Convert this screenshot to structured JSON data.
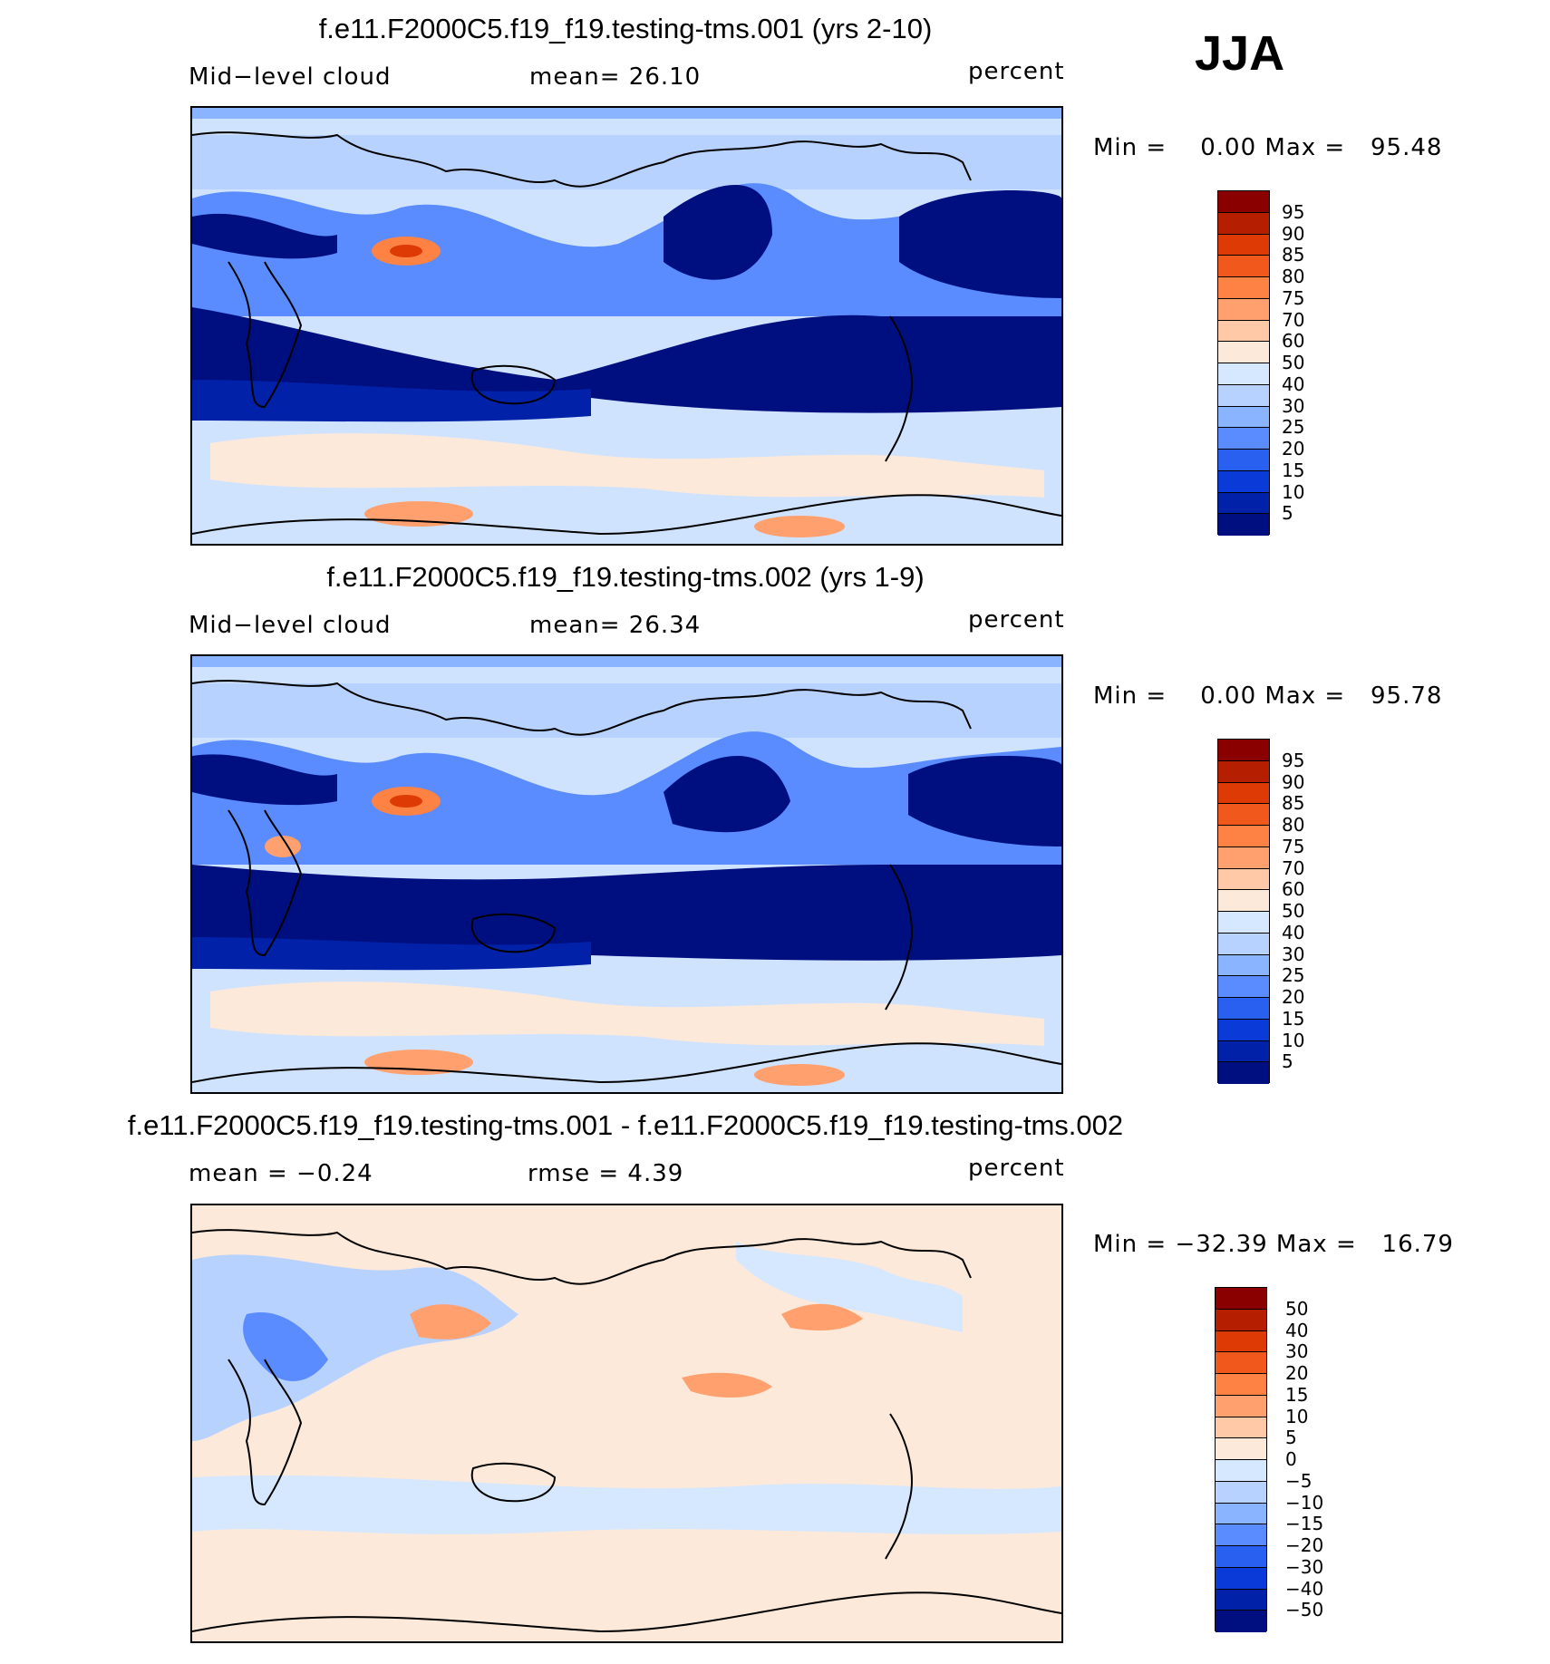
{
  "season": "JJA",
  "panels": [
    {
      "title": "f.e11.F2000C5.f19_f19.testing-tms.001 (yrs 2-10)",
      "left_label": "Mid−level cloud",
      "center_label": "mean=   26.10",
      "units": "percent",
      "minmax": "Min =    0.00 Max =   95.48",
      "kind": "cloud"
    },
    {
      "title": "f.e11.F2000C5.f19_f19.testing-tms.002 (yrs 1-9)",
      "left_label": "Mid−level cloud",
      "center_label": "mean=   26.34",
      "units": "percent",
      "minmax": "Min =    0.00 Max =   95.78",
      "kind": "cloud"
    },
    {
      "title": "f.e11.F2000C5.f19_f19.testing-tms.001 - f.e11.F2000C5.f19_f19.testing-tms.002",
      "left_label": "mean =   −0.24",
      "center_label": "rmse =    4.39",
      "units": "percent",
      "minmax": "Min = −32.39 Max =   16.79",
      "kind": "diff"
    }
  ],
  "colorbars": {
    "cloud": {
      "labels": [
        "95",
        "90",
        "85",
        "80",
        "75",
        "70",
        "60",
        "50",
        "40",
        "30",
        "25",
        "20",
        "15",
        "10",
        "5"
      ],
      "colors": [
        "#8a0000",
        "#b51f00",
        "#dd3a06",
        "#f0581c",
        "#ff8245",
        "#ffa06e",
        "#ffc9a8",
        "#fde9da",
        "#d6e8ff",
        "#b8d2ff",
        "#8ab4ff",
        "#5a8cff",
        "#2a60f0",
        "#0a3ad8",
        "#0021a8",
        "#000f80"
      ]
    },
    "diff": {
      "labels": [
        "50",
        "40",
        "30",
        "20",
        "15",
        "10",
        "5",
        "0",
        "−5",
        "−10",
        "−15",
        "−20",
        "−30",
        "−40",
        "−50"
      ],
      "colors": [
        "#8a0000",
        "#b51f00",
        "#dd3a06",
        "#f0581c",
        "#ff8245",
        "#ffa06e",
        "#ffc9a8",
        "#fde9da",
        "#d6e8ff",
        "#b8d2ff",
        "#8ab4ff",
        "#5a8cff",
        "#2a60f0",
        "#0a3ad8",
        "#0021a8",
        "#000f80"
      ]
    }
  }
}
